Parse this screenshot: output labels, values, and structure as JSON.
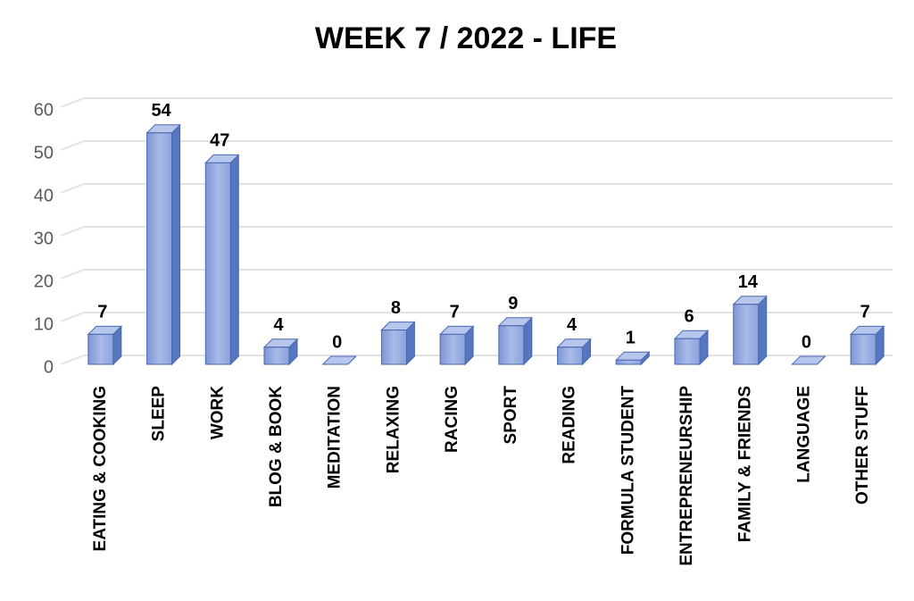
{
  "chart_data": {
    "type": "bar3d",
    "title": "WEEK 7 / 2022  - LIFE",
    "categories": [
      "EATING & COOKING",
      "SLEEP",
      "WORK",
      "BLOG & BOOK",
      "MEDITATION",
      "RELAXING",
      "RACING",
      "SPORT",
      "READING",
      "FORMULA STUDENT",
      "ENTREPRENEURSHIP",
      "FAMILY & FRIENDS",
      "LANGUAGE",
      "OTHER STUFF"
    ],
    "values": [
      7,
      54,
      47,
      4,
      0,
      8,
      7,
      9,
      4,
      1,
      6,
      14,
      0,
      7
    ],
    "color": "#8ea5dc",
    "ylim": [
      0,
      60
    ],
    "yticks": [
      0,
      10,
      20,
      30,
      40,
      50,
      60
    ],
    "grid": true
  }
}
